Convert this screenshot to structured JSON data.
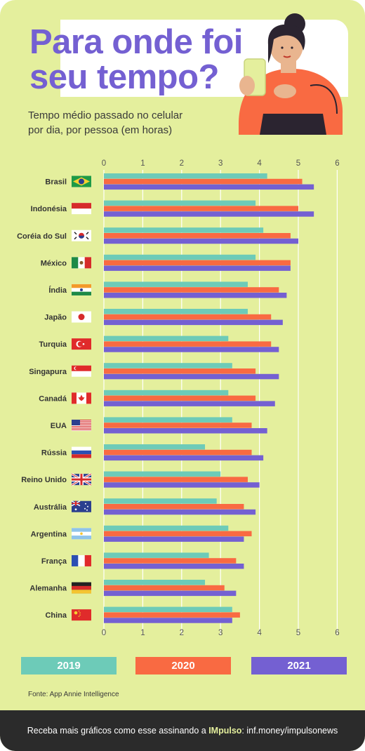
{
  "header": {
    "title_line1": "Para onde foi",
    "title_line2": "seu tempo?",
    "subtitle_line1": "Tempo médio passado no celular",
    "subtitle_line2": "por dia, por pessoa (em horas)"
  },
  "colors": {
    "background": "#e4ef9d",
    "bar_2019": "#6dcbb8",
    "bar_2020": "#f96a42",
    "bar_2021": "#7460d2",
    "title": "#7460d2"
  },
  "legend": [
    {
      "label": "2019",
      "color": "#6dcbb8"
    },
    {
      "label": "2020",
      "color": "#f96a42"
    },
    {
      "label": "2021",
      "color": "#7460d2"
    }
  ],
  "source": "Fonte: App Annie Intelligence",
  "footer": {
    "text_before": "Receba mais gráficos como esse assinando a ",
    "brand": "IMpulso",
    "text_after": ": inf.money/impulsonews"
  },
  "chart_data": {
    "type": "bar",
    "orientation": "horizontal",
    "xlim": [
      0,
      6
    ],
    "xticks": [
      0,
      1,
      2,
      3,
      4,
      5,
      6
    ],
    "grid": true,
    "legend_position": "bottom",
    "categories": [
      "Brasil",
      "Indonésia",
      "Coréia do Sul",
      "México",
      "Índia",
      "Japão",
      "Turquia",
      "Singapura",
      "Canadá",
      "EUA",
      "Rússia",
      "Reino Unido",
      "Austrália",
      "Argentina",
      "França",
      "Alemanha",
      "China"
    ],
    "flags": [
      "brazil-flag-icon",
      "indonesia-flag-icon",
      "south-korea-flag-icon",
      "mexico-flag-icon",
      "india-flag-icon",
      "japan-flag-icon",
      "turkey-flag-icon",
      "singapore-flag-icon",
      "canada-flag-icon",
      "usa-flag-icon",
      "russia-flag-icon",
      "uk-flag-icon",
      "australia-flag-icon",
      "argentina-flag-icon",
      "france-flag-icon",
      "germany-flag-icon",
      "china-flag-icon"
    ],
    "series": [
      {
        "name": "2019",
        "color": "#6dcbb8",
        "values": [
          4.2,
          3.9,
          4.1,
          3.9,
          3.7,
          3.7,
          3.2,
          3.3,
          3.2,
          3.3,
          2.6,
          3.0,
          2.9,
          3.2,
          2.7,
          2.6,
          3.3
        ]
      },
      {
        "name": "2020",
        "color": "#f96a42",
        "values": [
          5.1,
          5.0,
          4.8,
          4.8,
          4.5,
          4.3,
          4.3,
          3.9,
          3.9,
          3.8,
          3.8,
          3.7,
          3.6,
          3.8,
          3.4,
          3.1,
          3.5
        ]
      },
      {
        "name": "2021",
        "color": "#7460d2",
        "values": [
          5.4,
          5.4,
          5.0,
          4.8,
          4.7,
          4.6,
          4.5,
          4.5,
          4.4,
          4.2,
          4.1,
          4.0,
          3.9,
          3.6,
          3.6,
          3.4,
          3.3
        ]
      }
    ]
  }
}
